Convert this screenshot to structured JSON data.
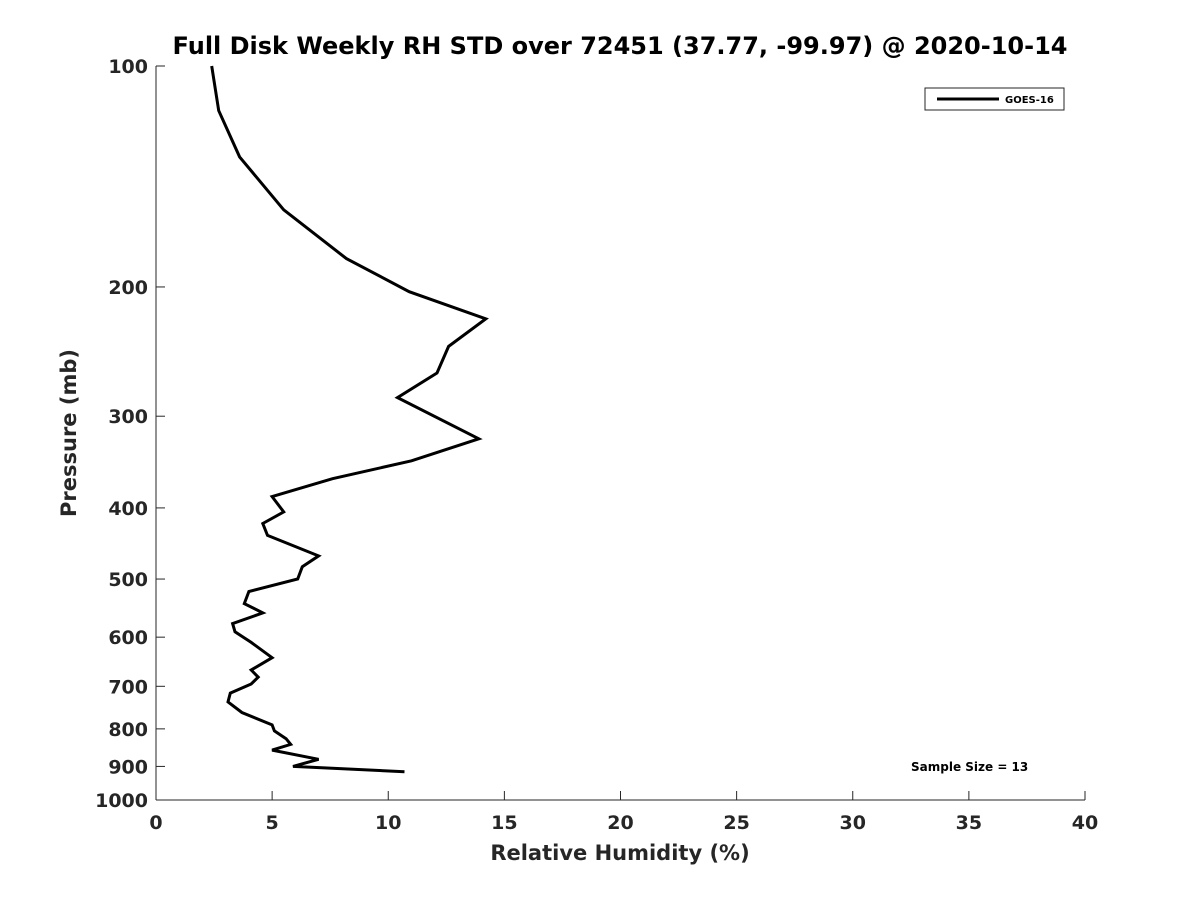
{
  "chart_data": {
    "type": "line",
    "title": "Full Disk Weekly RH STD over 72451 (37.77, -99.97) @ 2020-10-14",
    "xlabel": "Relative Humidity (%)",
    "ylabel": "Pressure (mb)",
    "xlim": [
      0,
      40
    ],
    "ylim": [
      100,
      1000
    ],
    "yscale": "log",
    "y_reversed": true,
    "x_ticks": [
      "0",
      "5",
      "10",
      "15",
      "20",
      "25",
      "30",
      "35",
      "40"
    ],
    "y_ticks": [
      "100",
      "200",
      "300",
      "400",
      "500",
      "600",
      "700",
      "800",
      "900",
      "1000"
    ],
    "legend_position": "top-right",
    "annotation": "Sample Size = 13",
    "series": [
      {
        "name": "GOES-16",
        "color": "#000000",
        "x": [
          2.4,
          2.7,
          3.6,
          5.5,
          8.2,
          10.9,
          14.2,
          12.6,
          12.1,
          10.4,
          13.9,
          11.0,
          7.6,
          5.0,
          5.5,
          4.6,
          4.8,
          7.0,
          6.3,
          6.1,
          4.0,
          3.8,
          4.6,
          3.3,
          3.4,
          4.1,
          5.0,
          4.1,
          4.4,
          4.1,
          3.2,
          3.1,
          3.7,
          5.0,
          5.1,
          5.6,
          5.8,
          5.0,
          7.0,
          5.9,
          10.7
        ],
        "y": [
          100,
          115,
          133,
          157,
          183,
          203,
          221,
          241,
          262,
          283,
          322,
          345,
          365,
          386,
          405,
          420,
          436,
          465,
          481,
          500,
          520,
          540,
          556,
          575,
          590,
          610,
          640,
          665,
          680,
          695,
          715,
          735,
          760,
          790,
          805,
          825,
          840,
          855,
          880,
          900,
          915
        ]
      }
    ]
  }
}
